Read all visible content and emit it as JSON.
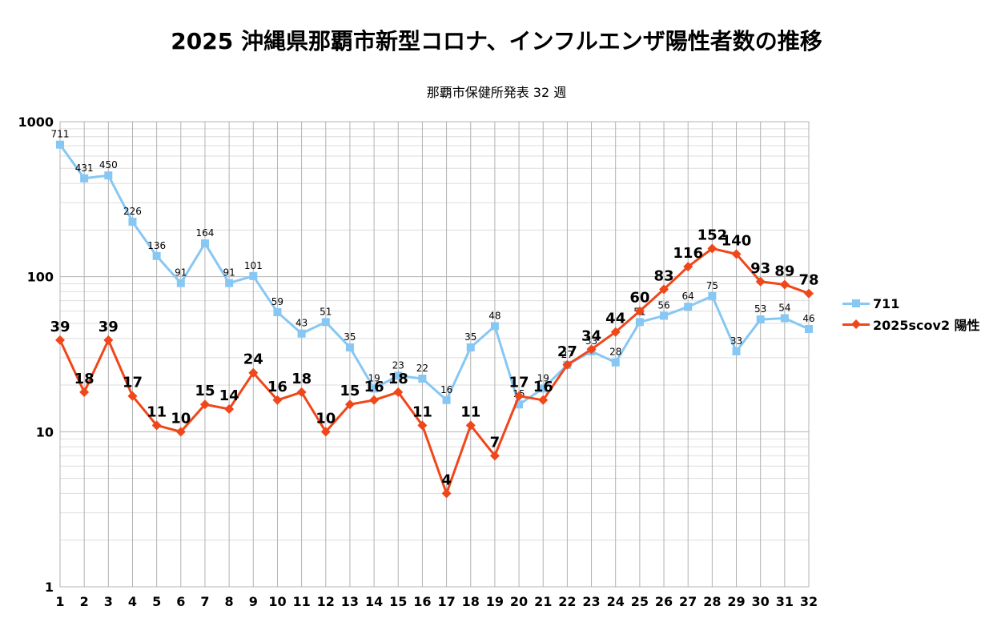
{
  "chart_data": {
    "type": "line",
    "title": "2025 沖縄県那覇市新型コロナ、インフルエンザ陽性者数の推移",
    "subtitle": "那覇市保健所発表 32 週",
    "xlabel": "",
    "ylabel": "",
    "y_scale": "log",
    "ylim": [
      1,
      1000
    ],
    "y_ticks": [
      "1",
      "10",
      "100",
      "1000"
    ],
    "grid": true,
    "legend_position": "right",
    "categories": [
      "1",
      "2",
      "3",
      "4",
      "5",
      "6",
      "7",
      "8",
      "9",
      "10",
      "11",
      "12",
      "13",
      "14",
      "15",
      "16",
      "17",
      "18",
      "19",
      "20",
      "21",
      "22",
      "23",
      "24",
      "25",
      "26",
      "27",
      "28",
      "29",
      "30",
      "31",
      "32"
    ],
    "series": [
      {
        "name": "711",
        "color": "#87c7f3",
        "marker": "square",
        "values": [
          711,
          431,
          450,
          226,
          136,
          91,
          164,
          91,
          101,
          59,
          43,
          51,
          35,
          19,
          23,
          22,
          16,
          35,
          48,
          15,
          19,
          27,
          33,
          28,
          51,
          56,
          64,
          75,
          33,
          53,
          54,
          46
        ]
      },
      {
        "name": "2025scov2 陽性",
        "color": "#f0471a",
        "marker": "diamond",
        "values": [
          39,
          18,
          39,
          17,
          11,
          10,
          15,
          14,
          24,
          16,
          18,
          10,
          15,
          16,
          18,
          11,
          4,
          11,
          7,
          17,
          16,
          27,
          34,
          44,
          60,
          83,
          116,
          152,
          140,
          93,
          89,
          78
        ]
      }
    ]
  }
}
